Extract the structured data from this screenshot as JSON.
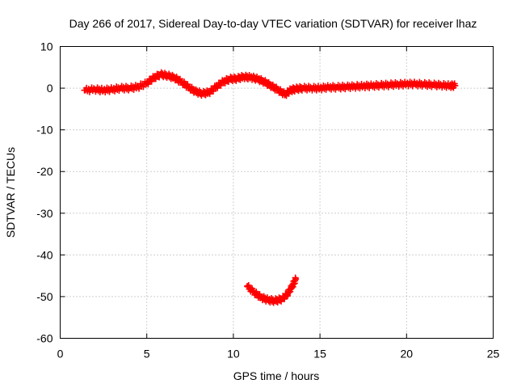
{
  "chart_data": {
    "type": "scatter",
    "title": "Day 266 of 2017, Sidereal Day-to-day VTEC variation (SDTVAR) for receiver lhaz",
    "xlabel": "GPS time / hours",
    "ylabel": "SDTVAR / TECUs",
    "xlim": [
      0,
      25
    ],
    "ylim": [
      -60,
      10
    ],
    "xticks": [
      0,
      5,
      10,
      15,
      20,
      25
    ],
    "yticks": [
      10,
      0,
      -10,
      -20,
      -30,
      -40,
      -50,
      -60
    ],
    "grid": true,
    "marker": "plus",
    "color": "#ff0000",
    "series": [
      {
        "name": "main",
        "x": [
          1.4,
          2.0,
          2.5,
          3.0,
          3.5,
          4.0,
          4.5,
          5.0,
          5.4,
          5.8,
          6.2,
          6.6,
          7.0,
          7.4,
          7.8,
          8.2,
          8.6,
          9.0,
          9.4,
          9.8,
          10.2,
          10.6,
          11.0,
          11.4,
          11.8,
          12.2,
          12.6,
          13.0,
          13.3,
          13.6,
          14.0,
          14.5,
          15.0,
          15.5,
          16.0,
          16.5,
          17.0,
          17.5,
          18.0,
          18.5,
          19.0,
          19.5,
          20.0,
          20.5,
          21.0,
          21.5,
          22.0,
          22.5,
          22.8
        ],
        "y": [
          -0.5,
          -0.3,
          -0.5,
          -0.3,
          0.0,
          0.0,
          0.3,
          1.2,
          2.5,
          3.3,
          3.0,
          2.5,
          1.5,
          0.3,
          -0.8,
          -1.3,
          -1.0,
          0.3,
          1.5,
          2.2,
          2.3,
          2.7,
          2.6,
          2.2,
          1.5,
          0.5,
          -0.5,
          -1.5,
          -0.5,
          -0.2,
          0.0,
          0.0,
          0.0,
          0.2,
          0.2,
          0.3,
          0.4,
          0.5,
          0.6,
          0.7,
          0.8,
          0.9,
          1.0,
          1.0,
          0.9,
          0.8,
          0.7,
          0.6,
          0.6
        ]
      },
      {
        "name": "arc",
        "x": [
          10.8,
          11.2,
          11.6,
          12.0,
          12.4,
          12.8,
          13.1,
          13.4,
          13.6
        ],
        "y": [
          -47.5,
          -49.0,
          -50.2,
          -50.8,
          -51.0,
          -50.6,
          -49.5,
          -47.5,
          -45.8
        ]
      }
    ]
  }
}
